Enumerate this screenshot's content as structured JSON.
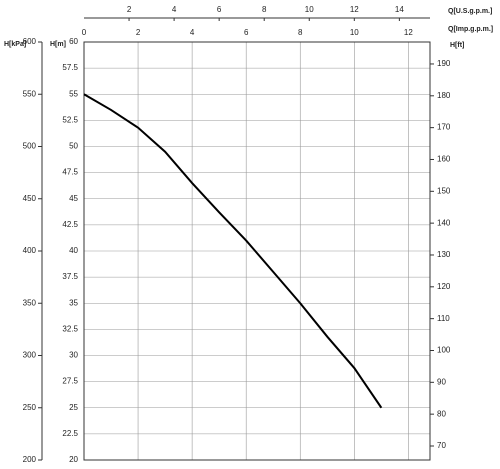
{
  "chart_data": {
    "type": "line",
    "x": [
      0,
      1,
      2,
      3,
      4,
      5,
      6,
      7,
      8,
      9,
      10,
      11
    ],
    "series": [
      {
        "color": "#000000",
        "values": [
          55,
          53.5,
          51.8,
          49.5,
          46.5,
          43.7,
          41,
          38,
          35,
          31.8,
          28.8,
          25
        ]
      }
    ],
    "xlabel": "Q[Imp.g.p.m.]",
    "xlim": [
      0,
      12.8
    ],
    "xticks": [
      0,
      2,
      4,
      6,
      8,
      10,
      12
    ],
    "x2label": "Q[U.S.g.p.m.]",
    "x2lim": [
      0,
      15.36
    ],
    "x2ticks": [
      2,
      4,
      6,
      8,
      10,
      12,
      14
    ],
    "ylabel": "H[m]",
    "ylim": [
      20,
      60
    ],
    "yticks": [
      20,
      22.5,
      25,
      27.5,
      30,
      32.5,
      35,
      37.5,
      40,
      42.5,
      45,
      47.5,
      50,
      52.5,
      55,
      57.5,
      60
    ],
    "y2label": "H[ft]",
    "y2lim": [
      65.6,
      196.9
    ],
    "y2ticks": [
      70,
      80,
      90,
      100,
      110,
      120,
      130,
      140,
      150,
      160,
      170,
      180,
      190
    ],
    "y3label": "H[kPa]",
    "y3lim": [
      200,
      600
    ],
    "y3ticks": [
      200,
      250,
      300,
      350,
      400,
      450,
      500,
      550,
      600
    ],
    "grid": true
  }
}
